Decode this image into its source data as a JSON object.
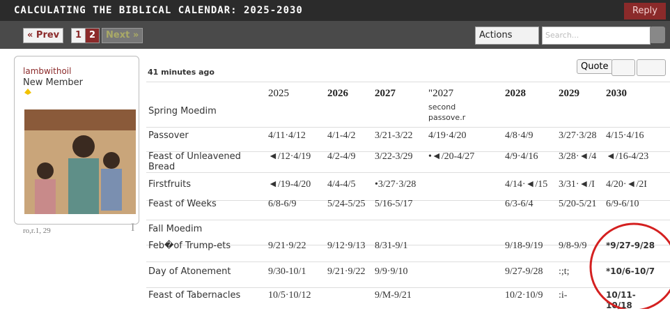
{
  "header": {
    "title": "CALCULATING THE BIBLICAL CALENDAR: 2025-2030",
    "reply": "Reply"
  },
  "toolbar": {
    "prev": "« Prev",
    "pages": [
      "1",
      "2"
    ],
    "next": "Next »",
    "actions": "Actions",
    "search": "Search..."
  },
  "user": {
    "name": "lambwithoil",
    "rank": "New Member",
    "footer": "ro,r.1, 29",
    "mark": "I"
  },
  "post": {
    "time": "41 minutes ago",
    "quote": "Quote"
  },
  "table": {
    "header": [
      "2025",
      "2026",
      "2027",
      "\"2027",
      "2028",
      "2029",
      "2030"
    ],
    "rows": [
      [
        "Spring Moedim",
        "",
        "",
        "",
        "second passove.r",
        "",
        "",
        ""
      ],
      [
        "Passover",
        "4/11·4/12",
        "4/1-4/2",
        "3/21-3/22",
        "4/19·4/20",
        "4/8·4/9",
        "3/27·3/28",
        "4/15·4/16"
      ],
      [
        "Feast of Unleavened Bread",
        "◄/12·4/19",
        "4/2-4/9",
        "3/22-3/29",
        "•◄/20-4/27",
        "4/9·4/16",
        "3/28·◄/4",
        "◄/16-4/23"
      ],
      [
        "Firstfruits",
        "◄/19-4/20",
        "4/4-4/5",
        "•3/27·3/28",
        "",
        "4/14·◄/15",
        "3/31·◄/I",
        "4/20·◄/2I"
      ],
      [
        "Feast of Weeks",
        "6/8-6/9",
        "5/24-5/25",
        "5/16-5/17",
        "",
        "6/3-6/4",
        "5/20-5/21",
        "6/9-6/10"
      ],
      [
        "Fall Moedim",
        "",
        "",
        "",
        "",
        "",
        "",
        ""
      ],
      [
        "Feb�of Trump-ets",
        "9/21·9/22",
        "9/12·9/13",
        "8/31-9/1",
        "",
        "9/18-9/19",
        "9/8-9/9",
        "*9/27-9/28"
      ],
      [
        "Day of Atonement",
        "9/30-10/1",
        "9/21·9/22",
        "9/9·9/10",
        "",
        "9/27-9/28",
        ":;t;",
        "*10/6-10/7"
      ],
      [
        "Feast of Tabernacles",
        "10/5·10/12",
        "",
        "9/M-9/21",
        "",
        "10/2·10/9",
        ":i-",
        "10/11-10/18"
      ]
    ]
  }
}
